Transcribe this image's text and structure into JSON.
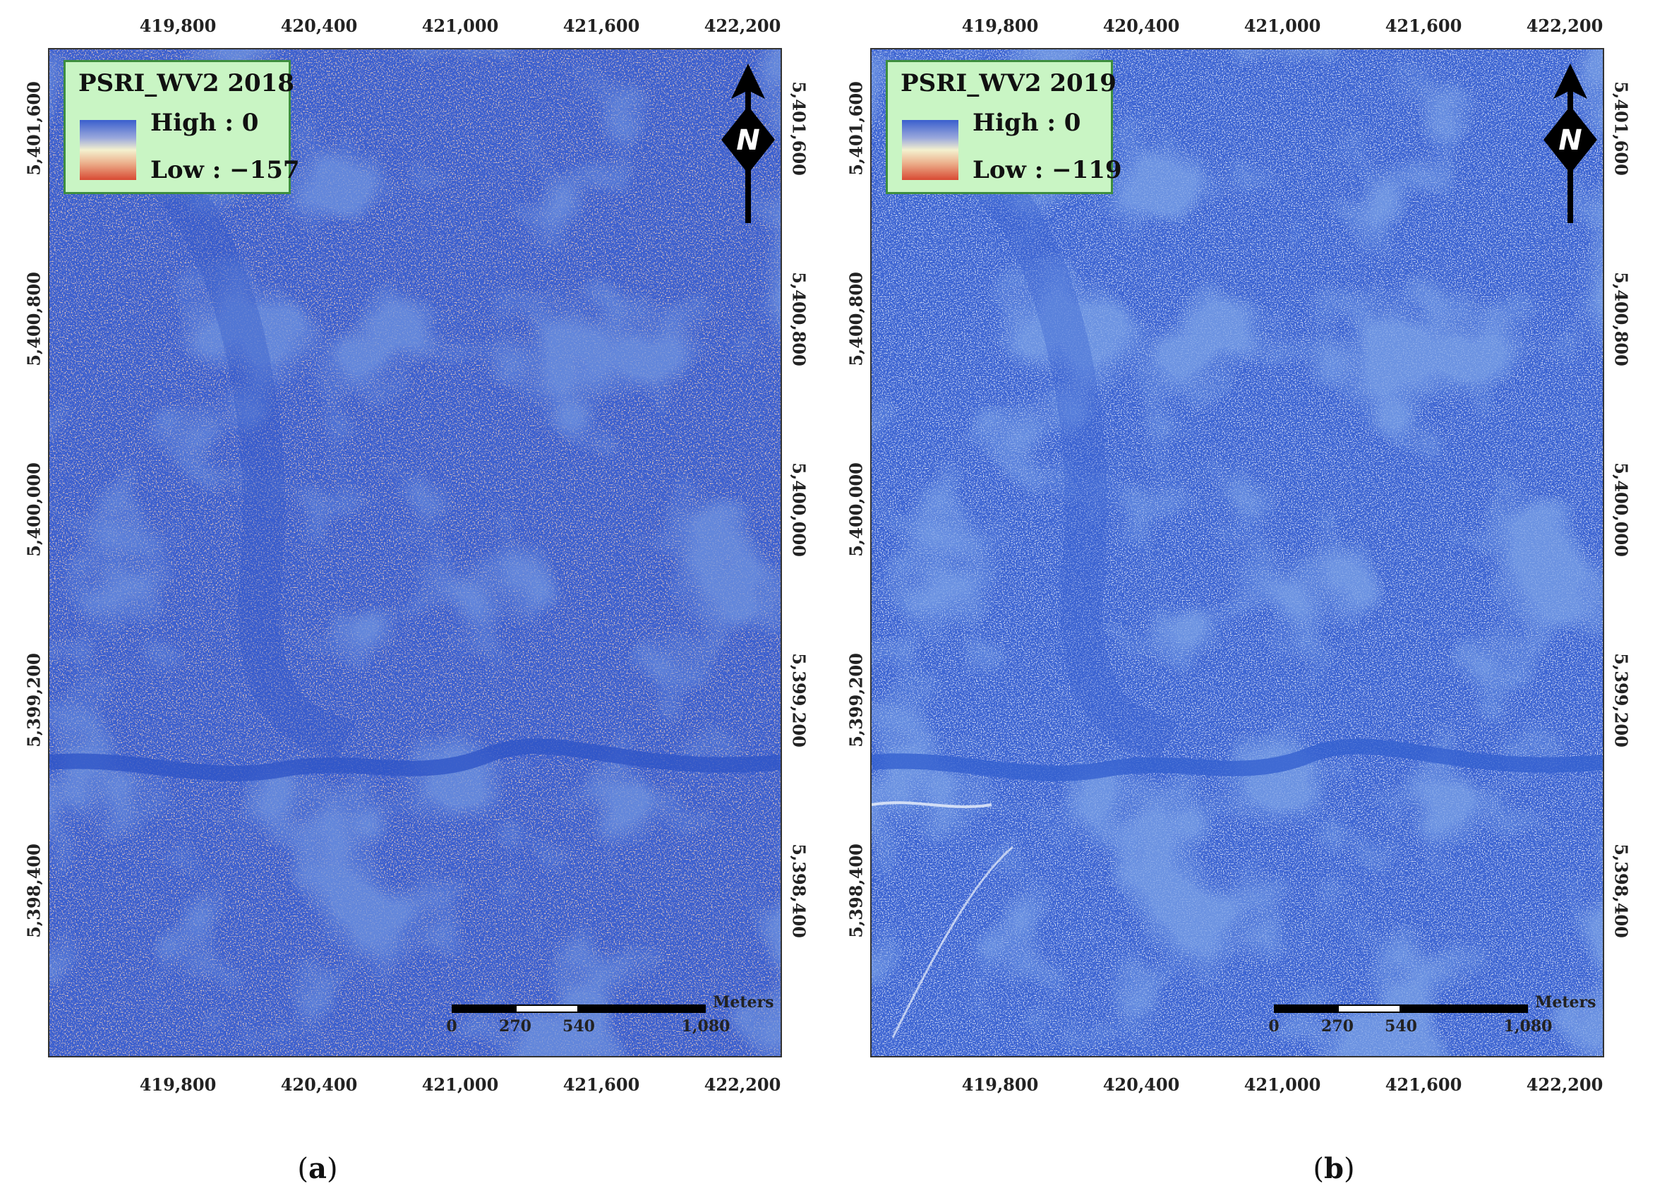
{
  "panels": [
    {
      "id": "a",
      "legend": {
        "title": "PSRI_WV2 2018",
        "high": "High : 0",
        "low": "Low : −157"
      },
      "caption": "a",
      "palette": {
        "base": "#3b5fcf",
        "speckle": [
          "#e8a57f",
          "#d98d6a",
          "#f1c9a4"
        ]
      },
      "x_ticks": [
        "419,800",
        "420,400",
        "421,000",
        "421,600",
        "422,200"
      ],
      "y_ticks": [
        "5,401,600",
        "5,400,800",
        "5,400,000",
        "5,399,200",
        "5,398,400"
      ]
    },
    {
      "id": "b",
      "legend": {
        "title": "PSRI_WV2 2019",
        "high": "High : 0",
        "low": "Low : −119"
      },
      "caption": "b",
      "palette": {
        "base": "#3b63d2",
        "speckle": [
          "#dfe6f7",
          "#c9d4f2",
          "#f2f5fb"
        ]
      },
      "x_ticks": [
        "419,800",
        "420,400",
        "421,000",
        "421,600",
        "422,200"
      ],
      "y_ticks": [
        "5,401,600",
        "5,400,800",
        "5,400,000",
        "5,399,200",
        "5,398,400"
      ]
    }
  ],
  "north_label": "N",
  "scale": {
    "labels": [
      "0",
      "270",
      "540",
      "1,080"
    ],
    "unit": "Meters"
  }
}
